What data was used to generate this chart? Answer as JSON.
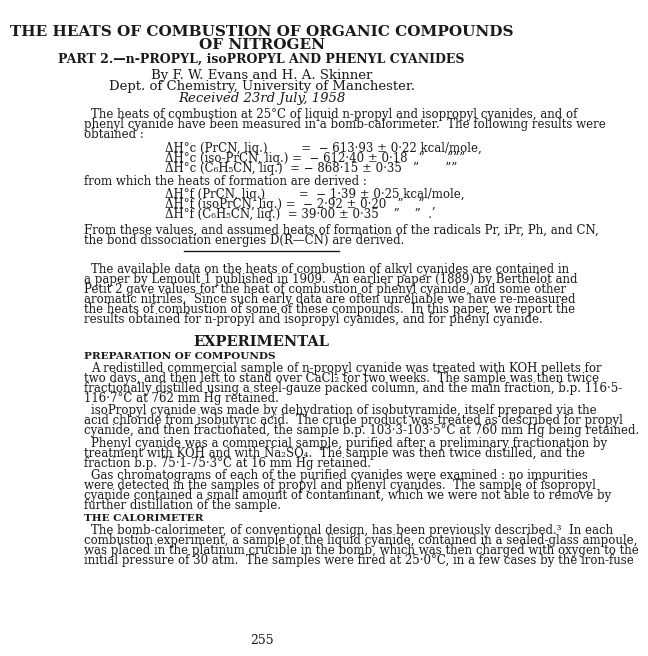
{
  "bg_color": "#ffffff",
  "text_color": "#1a1a1a",
  "title_line1": "THE HEATS OF COMBUSTION OF ORGANIC COMPOUNDS",
  "title_line2": "OF NITROGEN",
  "subtitle": "PART 2.—n-PROPYL, isoPROPYL AND PHENYL CYANIDES",
  "author_line": "By F. W. Evans and H. A. Skinner",
  "dept_line": "Dept. of Chemistry, University of Manchester.",
  "received_line": "Received 23rd July, 1958",
  "para1_lines": [
    "The heats of combustion at 25°C of liquid n-propyl and isopropyl cyanides, and of",
    "phenyl cyanide have been measured in a bomb-calorimeter.  The following results were",
    "obtained :"
  ],
  "eq1_lines": [
    "ΔH°c (PrCN, liq.)         =  − 613·93 ± 0·22 kcal/mole,",
    "ΔH°c (iso-PrCN, liq.) =  − 612·40 ± 0·18   ”      ”””",
    "ΔH°c (C₆H₅CN, liq.)  = − 868·15 ± 0·35   ”       ””"
  ],
  "from_line": "from which the heats of formation are derived :",
  "eq2_lines": [
    "ΔH°f (PrCN, liq.)         =  − 1·39 ± 0·25 kcal/mole,",
    "ΔH°f (isoPrCN, liq.) =  − 2·92 ± 0·20   ”    ”  ,",
    "ΔH°f (C₆H₅CN, liq.)  = 39·00 ± 0·35    ”    ”  ."
  ],
  "para2_lines": [
    "From these values, and assumed heats of formation of the radicals Pr, iPr, Ph, and CN,",
    "the bond dissociation energies D(R—CN) are derived."
  ],
  "para3_lines": [
    "The available data on the heats of combustion of alkyl cyanides are contained in",
    "a paper by Lemoult 1 published in 1909.  An earlier paper (1889) by Berthelot and",
    "Petit 2 gave values for the heat of combustion of phenyl cyanide, and some other",
    "aromatic nitriles.  Since such early data are often unreliable we have re-measured",
    "the heats of combustion of some of these compounds.  In this paper, we report the",
    "results obtained for n-propyl and isopropyl cyanides, and for phenyl cyanide."
  ],
  "experimental_heading": "EXPERIMENTAL",
  "prep_heading": "PREPARATION OF COMPOUNDS",
  "prep_lines": [
    "A redistilled commercial sample of n-propyl cyanide was treated with KOH pellets for",
    "two days, and then left to stand over CaCl₂ for two weeks.  The sample was then twice",
    "fractionally distilled using a steel-gauze packed column, and the main fraction, b.p. 116·5-",
    "116·7°C at 762 mm Hg retained.",
    "isoPropyl cyanide was made by dehydration of isobutyramide, itself prepared via the",
    "acid chloride from isobutyric acid.  The crude product was treated as described for propyl",
    "cyanide, and then fractionated, the sample b.p. 103·3-103·5°C at 760 mm Hg being retained.",
    "Phenyl cyanide was a commercial sample, purified after a preliminary fractionation by",
    "treatment with KOH and with Na₂SO₄.  The sample was then twice distilled, and the",
    "fraction b.p. 75·1-75·3°C at 16 mm Hg retained.",
    "Gas chromatograms of each of the purified cyanides were examined : no impurities",
    "were detected in the samples of propyl and phenyl cyanides.  The sample of isopropyl",
    "cyanide contained a small amount of contaminant, which we were not able to remove by",
    "further distillation of the sample."
  ],
  "cal_heading": "THE CALORIMETER",
  "cal_lines": [
    "The bomb-calorimeter, of conventional design, has been previously described.³  In each",
    "combustion experiment, a sample of the liquid cyanide, contained in a sealed-glass ampoule,",
    "was placed in the platinum crucible in the bomb, which was then charged with oxygen to the",
    "initial pressure of 30 atm.  The samples were fired at 25·0°C, in a few cases by the iron-fuse"
  ],
  "page_number": "255"
}
